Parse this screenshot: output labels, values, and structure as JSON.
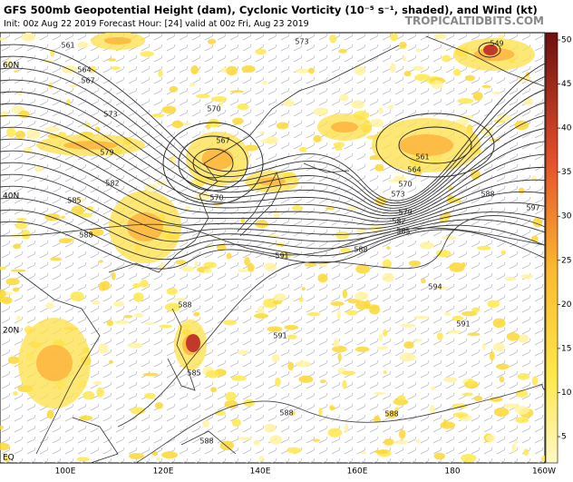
{
  "header": {
    "title": "GFS 500mb Geopotential Height (dam), Cyclonic Vorticity (10⁻⁵ s⁻¹, shaded), and Wind (kt)",
    "subtitle": "Init: 00z Aug 22 2019   Forecast Hour: [24]   valid at 00z Fri, Aug 23 2019",
    "brand": "TROPICALTIDBITS.COM"
  },
  "map": {
    "lat_labels": [
      "60N",
      "40N",
      "20N",
      "EQ"
    ],
    "lon_labels": [
      "100E",
      "120E",
      "140E",
      "160E",
      "180",
      "160W"
    ],
    "contour_labels": [
      561,
      564,
      567,
      573,
      579,
      582,
      585,
      588,
      570,
      567,
      570,
      573,
      561,
      564,
      570,
      573,
      579,
      582,
      585,
      588,
      591,
      594,
      597,
      591,
      591,
      588,
      585,
      588,
      588,
      588,
      549,
      588
    ]
  },
  "colorbar": {
    "ticks": [
      5,
      10,
      15,
      20,
      25,
      30,
      35,
      40,
      45,
      50
    ]
  }
}
